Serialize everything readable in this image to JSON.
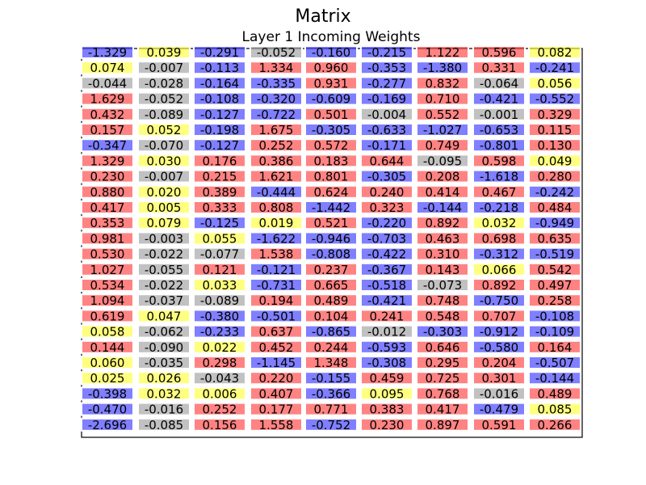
{
  "title": "Matrix",
  "subtitle": "Layer 1 Incoming Weights",
  "chart_data": {
    "type": "table",
    "title": "Matrix",
    "subtitle": "Layer 1 Incoming Weights",
    "colors": {
      "negative": "#3b3bff",
      "near_zero": "#a0a0a0",
      "small_positive": "#ffff3b",
      "positive": "#ff4040"
    },
    "rows": [
      [
        "-1.329",
        "0.039",
        "-0.291",
        "-0.052",
        "-0.160",
        "-0.215",
        "1.122",
        "0.596",
        "0.082"
      ],
      [
        "0.074",
        "-0.007",
        "-0.113",
        "1.334",
        "0.960",
        "-0.353",
        "-1.380",
        "0.331",
        "-0.241"
      ],
      [
        "-0.044",
        "-0.028",
        "-0.164",
        "-0.335",
        "0.931",
        "-0.277",
        "0.832",
        "-0.064",
        "0.056"
      ],
      [
        "1.629",
        "-0.052",
        "-0.108",
        "-0.320",
        "-0.609",
        "-0.169",
        "0.710",
        "-0.421",
        "-0.552"
      ],
      [
        "0.432",
        "-0.089",
        "-0.127",
        "-0.722",
        "0.501",
        "-0.004",
        "0.552",
        "-0.001",
        "0.329"
      ],
      [
        "0.157",
        "0.052",
        "-0.198",
        "1.675",
        "-0.305",
        "-0.633",
        "-1.027",
        "-0.653",
        "0.115"
      ],
      [
        "-0.347",
        "-0.070",
        "-0.127",
        "0.252",
        "0.572",
        "-0.171",
        "0.749",
        "-0.801",
        "0.130"
      ],
      [
        "1.329",
        "0.030",
        "0.176",
        "0.386",
        "0.183",
        "0.644",
        "-0.095",
        "0.598",
        "0.049"
      ],
      [
        "0.230",
        "-0.007",
        "0.215",
        "1.621",
        "0.801",
        "-0.305",
        "0.208",
        "-1.618",
        "0.280"
      ],
      [
        "0.880",
        "0.020",
        "0.389",
        "-0.444",
        "0.624",
        "0.240",
        "0.414",
        "0.467",
        "-0.242"
      ],
      [
        "0.417",
        "0.005",
        "0.333",
        "0.808",
        "-1.442",
        "0.323",
        "-0.144",
        "-0.218",
        "0.484"
      ],
      [
        "0.353",
        "0.079",
        "-0.125",
        "0.019",
        "0.521",
        "-0.220",
        "0.892",
        "0.032",
        "-0.949"
      ],
      [
        "0.981",
        "-0.003",
        "0.055",
        "-1.622",
        "-0.946",
        "-0.703",
        "0.463",
        "0.698",
        "0.635"
      ],
      [
        "0.530",
        "-0.022",
        "-0.077",
        "1.538",
        "-0.808",
        "-0.422",
        "0.310",
        "-0.312",
        "-0.519"
      ],
      [
        "1.027",
        "-0.055",
        "0.121",
        "-0.121",
        "0.237",
        "-0.367",
        "0.143",
        "0.066",
        "0.542"
      ],
      [
        "0.534",
        "-0.022",
        "0.033",
        "-0.731",
        "0.665",
        "-0.518",
        "-0.073",
        "0.892",
        "0.497"
      ],
      [
        "1.094",
        "-0.037",
        "-0.089",
        "0.194",
        "0.489",
        "-0.421",
        "0.748",
        "-0.750",
        "0.258"
      ],
      [
        "0.619",
        "0.047",
        "-0.380",
        "-0.501",
        "0.104",
        "0.241",
        "0.548",
        "0.707",
        "-0.108"
      ],
      [
        "0.058",
        "-0.062",
        "-0.233",
        "0.637",
        "-0.865",
        "-0.012",
        "-0.303",
        "-0.912",
        "-0.109"
      ],
      [
        "0.144",
        "-0.090",
        "0.022",
        "0.452",
        "0.244",
        "-0.593",
        "0.646",
        "-0.580",
        "0.164"
      ],
      [
        "0.060",
        "-0.035",
        "0.298",
        "-1.145",
        "1.348",
        "-0.308",
        "0.295",
        "0.204",
        "-0.507"
      ],
      [
        "0.025",
        "0.026",
        "-0.043",
        "0.220",
        "-0.155",
        "0.459",
        "0.725",
        "0.301",
        "-0.144"
      ],
      [
        "-0.398",
        "0.032",
        "0.006",
        "0.407",
        "-0.366",
        "0.095",
        "0.768",
        "-0.016",
        "0.489"
      ],
      [
        "-0.470",
        "-0.016",
        "0.252",
        "0.177",
        "0.771",
        "0.383",
        "0.417",
        "-0.479",
        "0.085"
      ],
      [
        "-2.696",
        "-0.085",
        "0.156",
        "1.558",
        "-0.752",
        "0.230",
        "0.897",
        "0.591",
        "0.266"
      ]
    ]
  }
}
